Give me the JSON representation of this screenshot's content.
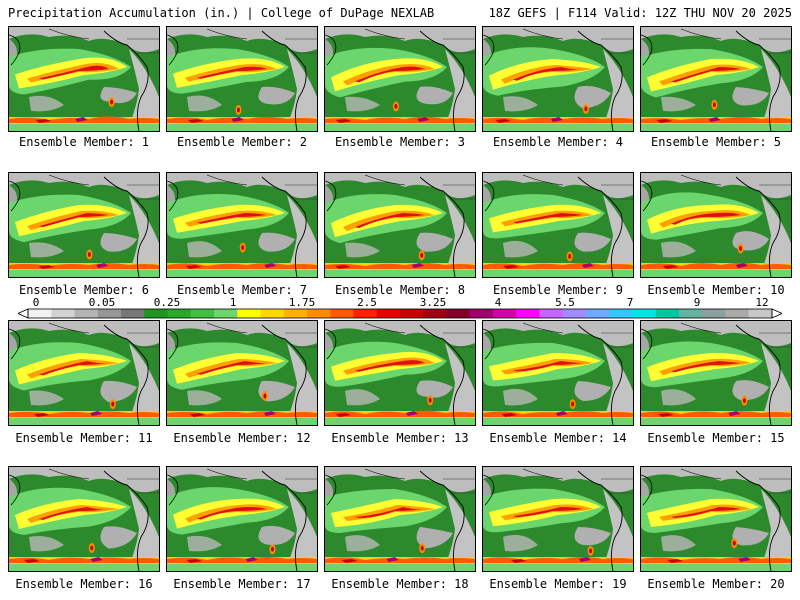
{
  "header": {
    "left": "Precipitation Accumulation (in.) | College of DuPage NEXLAB",
    "right": "18Z GEFS | F114 Valid: 12Z THU NOV 20 2025"
  },
  "members": [
    "Ensemble Member: 1",
    "Ensemble Member: 2",
    "Ensemble Member: 3",
    "Ensemble Member: 4",
    "Ensemble Member: 5",
    "Ensemble Member: 6",
    "Ensemble Member: 7",
    "Ensemble Member: 8",
    "Ensemble Member: 9",
    "Ensemble Member: 10",
    "Ensemble Member: 11",
    "Ensemble Member: 12",
    "Ensemble Member: 13",
    "Ensemble Member: 14",
    "Ensemble Member: 15",
    "Ensemble Member: 16",
    "Ensemble Member: 17",
    "Ensemble Member: 18",
    "Ensemble Member: 19",
    "Ensemble Member: 20"
  ],
  "colorbar": {
    "tick_labels": [
      "0",
      "0.05",
      "0.25",
      "1",
      "1.75",
      "2.5",
      "3.25",
      "4",
      "5.5",
      "7",
      "9",
      "12"
    ],
    "colors": [
      "#f2f2f2",
      "#d2d2d2",
      "#b4b4b4",
      "#969696",
      "#787878",
      "#1e9620",
      "#2aa82a",
      "#41c141",
      "#6bd66b",
      "#ffff00",
      "#ffd800",
      "#ffb000",
      "#ff8c00",
      "#ff5a00",
      "#ff2000",
      "#e60000",
      "#c80000",
      "#a00010",
      "#82002a",
      "#a0006e",
      "#d200aa",
      "#ff00ff",
      "#c864ff",
      "#a08cff",
      "#6eaaff",
      "#32c8ff",
      "#00e6e6",
      "#00c8a0",
      "#64b4a0",
      "#8ca0a0",
      "#aaaaaa",
      "#c8c8c8"
    ]
  }
}
